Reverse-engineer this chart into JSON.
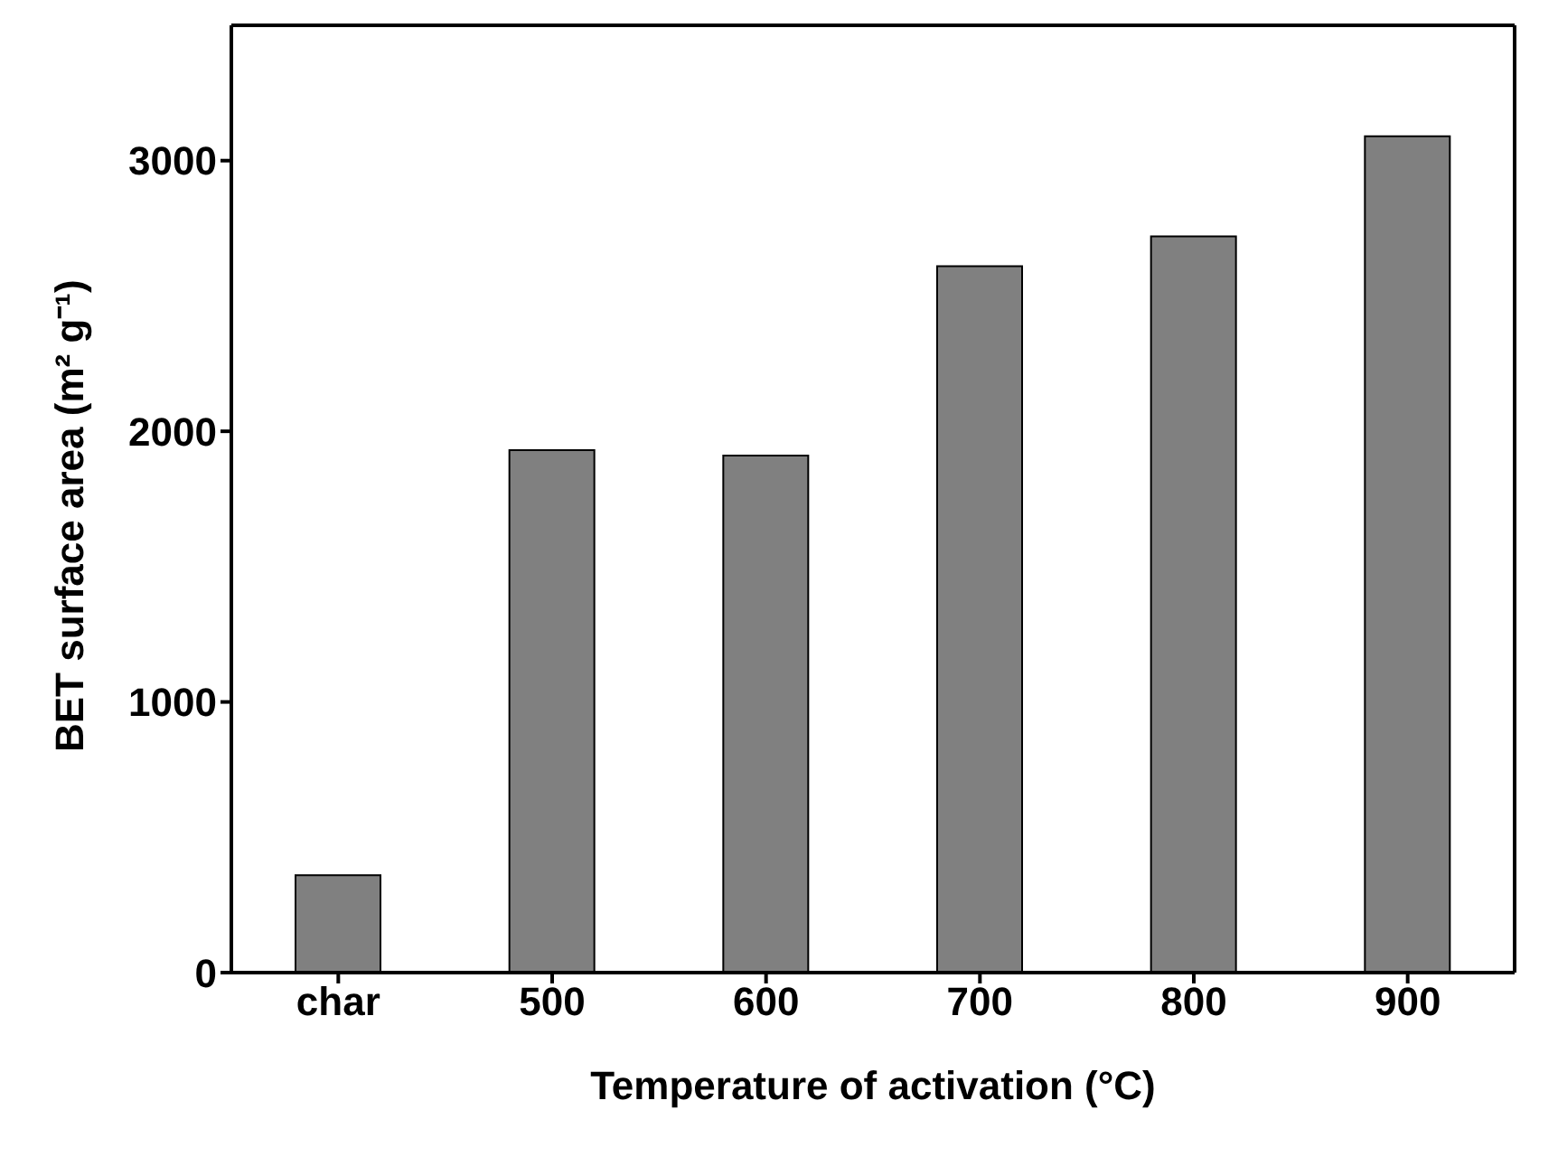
{
  "chart_data": {
    "type": "bar",
    "xlabel": "Temperature of activation (°C)",
    "ylabel": "BET surface area (m² g⁻¹)",
    "categories": [
      "char",
      "500",
      "600",
      "700",
      "800",
      "900"
    ],
    "series": [
      {
        "color": "#808080",
        "values": [
          360,
          1930,
          1910,
          2610,
          2720,
          3090
        ]
      }
    ],
    "ylim": [
      0,
      3500
    ],
    "yticks": [
      0,
      1000,
      2000,
      3000
    ],
    "grid": false,
    "legend": false
  }
}
